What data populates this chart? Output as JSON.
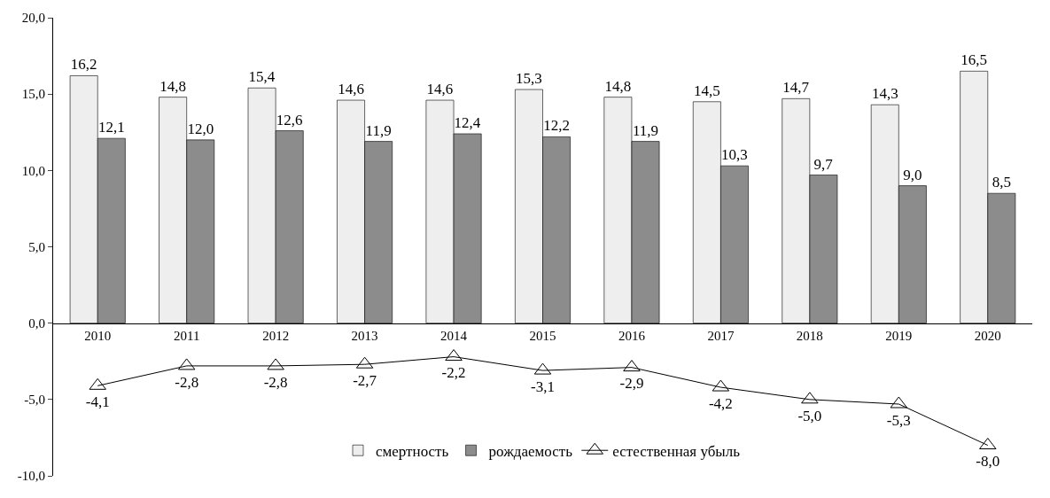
{
  "chart_data": {
    "type": "bar",
    "categories": [
      "2010",
      "2011",
      "2012",
      "2013",
      "2014",
      "2015",
      "2016",
      "2017",
      "2018",
      "2019",
      "2020"
    ],
    "series": [
      {
        "name": "смертность",
        "color": "#eeeeee",
        "values": [
          16.2,
          14.8,
          15.4,
          14.6,
          14.6,
          15.3,
          14.8,
          14.5,
          14.7,
          14.3,
          16.5
        ],
        "value_labels": [
          "16,2",
          "14,8",
          "15,4",
          "14,6",
          "14,6",
          "15,3",
          "14,8",
          "14,5",
          "14,7",
          "14,3",
          "16,5"
        ]
      },
      {
        "name": "рождаемость",
        "color": "#8c8c8c",
        "values": [
          12.1,
          12.0,
          12.6,
          11.9,
          12.4,
          12.2,
          11.9,
          10.3,
          9.7,
          9.0,
          8.5
        ],
        "value_labels": [
          "12,1",
          "12,0",
          "12,6",
          "11,9",
          "12,4",
          "12,2",
          "11,9",
          "10,3",
          "9,7",
          "9,0",
          "8,5"
        ]
      },
      {
        "name": "естественная убыль",
        "type": "line",
        "color": "#000000",
        "marker": "triangle",
        "values": [
          -4.1,
          -2.8,
          -2.8,
          -2.7,
          -2.2,
          -3.1,
          -2.9,
          -4.2,
          -5.0,
          -5.3,
          -8.0
        ],
        "value_labels": [
          "-4,1",
          "-2,8",
          "-2,8",
          "-2,7",
          "-2,2",
          "-3,1",
          "-2,9",
          "-4,2",
          "-5,0",
          "-5,3",
          "-8,0"
        ]
      }
    ],
    "ylim": [
      -10,
      20
    ],
    "yticks": [
      {
        "value": -10,
        "label": "-10,0"
      },
      {
        "value": -5,
        "label": "-5,0"
      },
      {
        "value": 0,
        "label": "0,0"
      },
      {
        "value": 5,
        "label": "5,0"
      },
      {
        "value": 10,
        "label": "10,0"
      },
      {
        "value": 15,
        "label": "15,0"
      },
      {
        "value": 20,
        "label": "20,0"
      }
    ],
    "grid": false,
    "legend": "bottom"
  }
}
